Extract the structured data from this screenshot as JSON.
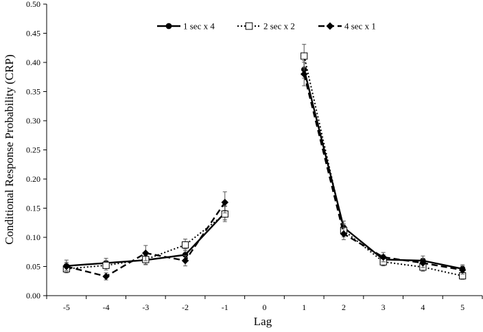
{
  "chart_data": {
    "type": "line",
    "title": "",
    "xlabel": "Lag",
    "ylabel": "Conditional Response Probability (CRP)",
    "x_ticks": [
      "-5",
      "-4",
      "-3",
      "-2",
      "-1",
      "0",
      "1",
      "2",
      "3",
      "4",
      "5"
    ],
    "y_ticks": [
      "0.00",
      "0.05",
      "0.10",
      "0.15",
      "0.20",
      "0.25",
      "0.30",
      "0.35",
      "0.40",
      "0.45",
      "0.50"
    ],
    "ylim": [
      0,
      0.5
    ],
    "xlim": [
      -5,
      5
    ],
    "grid": false,
    "legend_position": "top-center",
    "series": [
      {
        "name": "1 sec x 4",
        "line_style": "solid",
        "marker": "filled-circle",
        "color": "#000000",
        "segments": [
          {
            "x": [
              -5,
              -4,
              -3,
              -2,
              -1
            ],
            "y": [
              0.051,
              0.056,
              0.061,
              0.07,
              0.142
            ],
            "err": [
              0.01,
              0.008,
              0.008,
              0.01,
              0.012
            ]
          },
          {
            "x": [
              1,
              2,
              3,
              4,
              5
            ],
            "y": [
              0.388,
              0.117,
              0.062,
              0.06,
              0.046
            ],
            "err": [
              0.015,
              0.011,
              0.008,
              0.008,
              0.007
            ]
          }
        ]
      },
      {
        "name": "2 sec x 2",
        "line_style": "dotted",
        "marker": "open-square",
        "color": "#000000",
        "segments": [
          {
            "x": [
              -5,
              -4,
              -3,
              -2,
              -1
            ],
            "y": [
              0.046,
              0.052,
              0.062,
              0.087,
              0.14
            ],
            "err": [
              0.007,
              0.008,
              0.008,
              0.01,
              0.013
            ]
          },
          {
            "x": [
              1,
              2,
              3,
              4,
              5
            ],
            "y": [
              0.411,
              0.112,
              0.058,
              0.049,
              0.034
            ],
            "err": [
              0.02,
              0.011,
              0.007,
              0.007,
              0.006
            ]
          }
        ]
      },
      {
        "name": "4 sec x 1",
        "line_style": "dashed",
        "marker": "filled-diamond",
        "color": "#000000",
        "segments": [
          {
            "x": [
              -5,
              -4,
              -3,
              -2,
              -1
            ],
            "y": [
              0.05,
              0.033,
              0.073,
              0.06,
              0.16
            ],
            "err": [
              0.007,
              0.006,
              0.013,
              0.009,
              0.018
            ]
          },
          {
            "x": [
              1,
              2,
              3,
              4,
              5
            ],
            "y": [
              0.38,
              0.106,
              0.066,
              0.056,
              0.044
            ],
            "err": [
              0.02,
              0.01,
              0.008,
              0.008,
              0.007
            ]
          }
        ]
      }
    ]
  }
}
